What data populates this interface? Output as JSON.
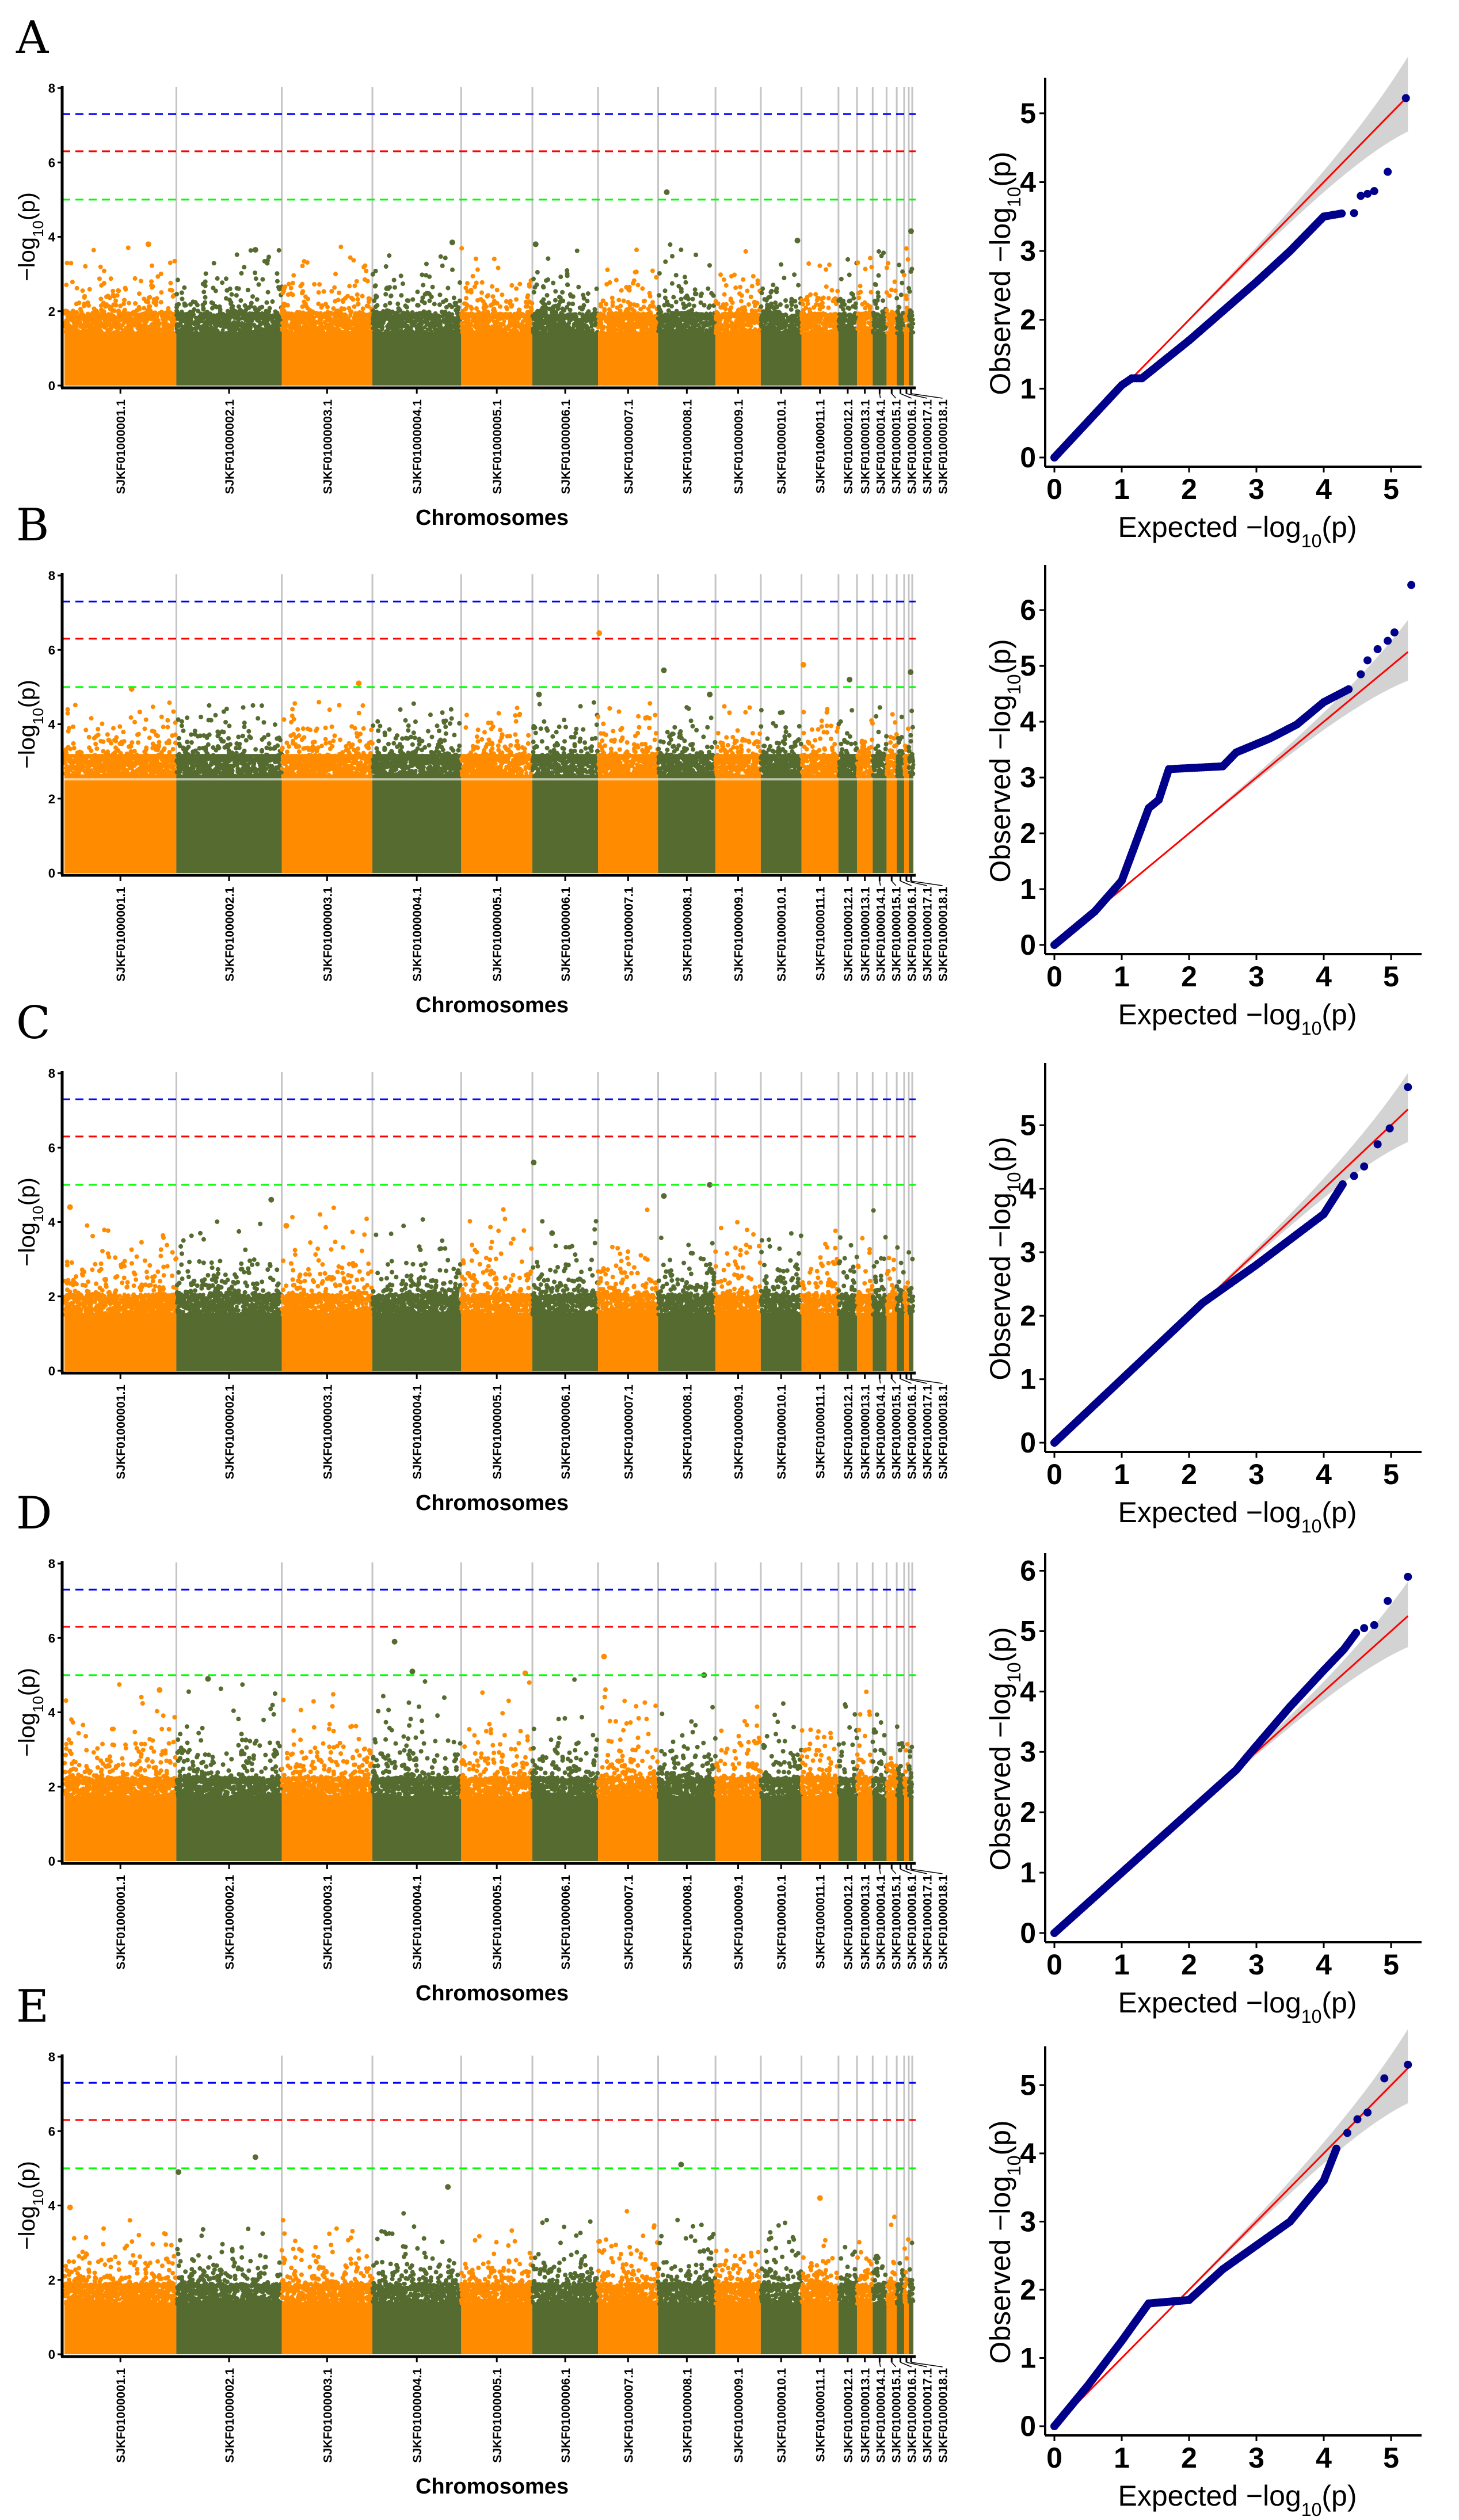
{
  "colors": {
    "odd": "#ff8c00",
    "even": "#556b2f",
    "sep": "#c4c4c4",
    "qq_point": "#00008b",
    "qq_line": "#ff0000",
    "band": "#d3d3d3"
  },
  "thresholds": [
    {
      "value": 7.3,
      "color": "#0000ff"
    },
    {
      "value": 6.3,
      "color": "#ff0000"
    },
    {
      "value": 5.0,
      "color": "#00ff00"
    }
  ],
  "chart_data": {
    "type": "scatter",
    "chromosomes": [
      "SJKF01000001.1",
      "SJKF01000002.1",
      "SJKF01000003.1",
      "SJKF01000004.1",
      "SJKF01000005.1",
      "SJKF01000006.1",
      "SJKF01000007.1",
      "SJKF01000008.1",
      "SJKF01000009.1",
      "SJKF01000010.1",
      "SJKF01000011.1",
      "SJKF01000012.1",
      "SJKF01000013.1",
      "SJKF01000014.1",
      "SJKF01000015.1",
      "SJKF01000016.1",
      "SJKF01000017.1",
      "SJKF01000018.1"
    ],
    "chromosome_relative_lengths": [
      121,
      114,
      98,
      96,
      77,
      71,
      65,
      62,
      49,
      44,
      40,
      20,
      17,
      15,
      11,
      8,
      5,
      5
    ],
    "manhattan": {
      "xlabel": "Chromosomes",
      "ylabel_prefix": "−log",
      "ylabel_sub": "10",
      "ylabel_arg": "(p)",
      "ylim": [
        0,
        8
      ],
      "yticks": [
        "0",
        "2",
        "4",
        "6",
        "8"
      ]
    },
    "qq": {
      "xlabel_prefix": "Expected  −log",
      "ylabel_prefix": "Observed  −log",
      "sub": "10",
      "arg": "(p)",
      "xlim": [
        0,
        5.4
      ],
      "xticks": [
        "0",
        "1",
        "2",
        "3",
        "4",
        "5"
      ]
    },
    "panels": [
      {
        "label": "A",
        "bulk": 1.9,
        "tail": 0.45,
        "max": 3.8,
        "peaks": [
          [
            8,
            0.15,
            5.2
          ],
          [
            18,
            0.5,
            4.15
          ],
          [
            10,
            0.9,
            3.9
          ],
          [
            4,
            0.9,
            3.85
          ],
          [
            1,
            0.75,
            3.8
          ],
          [
            6,
            0.05,
            3.8
          ],
          [
            2,
            0.75,
            3.65
          ]
        ],
        "qq_ymax": 5.35,
        "qq_yticks": [
          "0",
          "1",
          "2",
          "3",
          "4",
          "5"
        ],
        "qq_curve": [
          [
            0,
            0
          ],
          [
            1,
            1.05
          ],
          [
            1.15,
            1.15
          ],
          [
            1.3,
            1.15
          ],
          [
            2,
            1.7
          ],
          [
            3,
            2.55
          ],
          [
            3.5,
            3.0
          ],
          [
            4,
            3.5
          ],
          [
            4.3,
            3.55
          ]
        ],
        "qq_top": [
          [
            4.45,
            3.55
          ],
          [
            4.55,
            3.8
          ],
          [
            4.65,
            3.83
          ],
          [
            4.75,
            3.87
          ],
          [
            4.95,
            4.15
          ],
          [
            5.22,
            5.22
          ]
        ]
      },
      {
        "label": "B",
        "bulk": 3.1,
        "tail": 0.45,
        "max": 4.6,
        "peaks": [
          [
            7,
            0.02,
            6.45
          ],
          [
            11,
            0.05,
            5.6
          ],
          [
            8,
            0.1,
            5.45
          ],
          [
            18,
            0.4,
            5.4
          ],
          [
            12,
            0.6,
            5.2
          ],
          [
            3,
            0.85,
            5.1
          ],
          [
            1,
            0.6,
            4.95
          ],
          [
            8,
            0.9,
            4.8
          ],
          [
            6,
            0.1,
            4.8
          ]
        ],
        "qq_ymax": 6.6,
        "qq_yticks": [
          "0",
          "1",
          "2",
          "3",
          "4",
          "5",
          "6"
        ],
        "qq_curve": [
          [
            0,
            0
          ],
          [
            0.6,
            0.6
          ],
          [
            1,
            1.15
          ],
          [
            1.2,
            1.8
          ],
          [
            1.4,
            2.45
          ],
          [
            1.55,
            2.6
          ],
          [
            1.7,
            3.15
          ],
          [
            2.5,
            3.2
          ],
          [
            2.7,
            3.45
          ],
          [
            3.2,
            3.7
          ],
          [
            3.6,
            3.95
          ],
          [
            4,
            4.35
          ],
          [
            4.4,
            4.6
          ]
        ],
        "qq_top": [
          [
            4.55,
            4.85
          ],
          [
            4.65,
            5.1
          ],
          [
            4.8,
            5.3
          ],
          [
            4.95,
            5.45
          ],
          [
            5.05,
            5.6
          ],
          [
            5.3,
            6.45
          ]
        ]
      },
      {
        "label": "C",
        "bulk": 2.0,
        "tail": 0.5,
        "max": 4.4,
        "peaks": [
          [
            6,
            0.02,
            5.6
          ],
          [
            8,
            0.9,
            5.0
          ],
          [
            8,
            0.1,
            4.7
          ],
          [
            2,
            0.9,
            4.6
          ],
          [
            1,
            0.05,
            4.4
          ],
          [
            3,
            0.05,
            3.9
          ],
          [
            6,
            0.3,
            3.7
          ]
        ],
        "qq_ymax": 5.8,
        "qq_yticks": [
          "0",
          "1",
          "2",
          "3",
          "4",
          "5"
        ],
        "qq_curve": [
          [
            0,
            0
          ],
          [
            2.2,
            2.2
          ],
          [
            3,
            2.8
          ],
          [
            3.5,
            3.2
          ],
          [
            4,
            3.6
          ],
          [
            4.3,
            4.1
          ]
        ],
        "qq_top": [
          [
            4.45,
            4.2
          ],
          [
            4.6,
            4.35
          ],
          [
            4.8,
            4.7
          ],
          [
            4.98,
            4.95
          ],
          [
            5.25,
            5.6
          ]
        ]
      },
      {
        "label": "D",
        "bulk": 2.2,
        "tail": 0.55,
        "max": 4.9,
        "peaks": [
          [
            4,
            0.25,
            5.9
          ],
          [
            7,
            0.1,
            5.5
          ],
          [
            4,
            0.45,
            5.1
          ],
          [
            5,
            0.9,
            5.05
          ],
          [
            8,
            0.8,
            5.0
          ],
          [
            2,
            0.3,
            4.9
          ],
          [
            1,
            0.85,
            4.6
          ]
        ],
        "qq_ymax": 6.1,
        "qq_yticks": [
          "0",
          "1",
          "2",
          "3",
          "4",
          "5",
          "6"
        ],
        "qq_curve": [
          [
            0,
            0
          ],
          [
            2.7,
            2.7
          ],
          [
            3,
            3.1
          ],
          [
            3.5,
            3.75
          ],
          [
            4,
            4.35
          ],
          [
            4.3,
            4.7
          ],
          [
            4.5,
            5.0
          ]
        ],
        "qq_top": [
          [
            4.6,
            5.05
          ],
          [
            4.75,
            5.1
          ],
          [
            4.95,
            5.5
          ],
          [
            5.25,
            5.9
          ]
        ]
      },
      {
        "label": "E",
        "bulk": 1.85,
        "tail": 0.4,
        "max": 3.9,
        "peaks": [
          [
            2,
            0.75,
            5.3
          ],
          [
            8,
            0.4,
            5.1
          ],
          [
            2,
            0.02,
            4.9
          ],
          [
            4,
            0.85,
            4.5
          ],
          [
            1,
            0.05,
            3.95
          ],
          [
            11,
            0.5,
            4.2
          ]
        ],
        "qq_ymax": 5.4,
        "qq_yticks": [
          "0",
          "1",
          "2",
          "3",
          "4",
          "5"
        ],
        "qq_curve": [
          [
            0,
            0
          ],
          [
            0.5,
            0.6
          ],
          [
            1,
            1.25
          ],
          [
            1.4,
            1.8
          ],
          [
            2,
            1.85
          ],
          [
            2.5,
            2.3
          ],
          [
            3,
            2.65
          ],
          [
            3.5,
            3.0
          ],
          [
            4,
            3.6
          ],
          [
            4.2,
            4.1
          ]
        ],
        "qq_top": [
          [
            4.35,
            4.3
          ],
          [
            4.5,
            4.5
          ],
          [
            4.65,
            4.6
          ],
          [
            4.9,
            5.1
          ],
          [
            5.25,
            5.3
          ]
        ]
      }
    ]
  }
}
